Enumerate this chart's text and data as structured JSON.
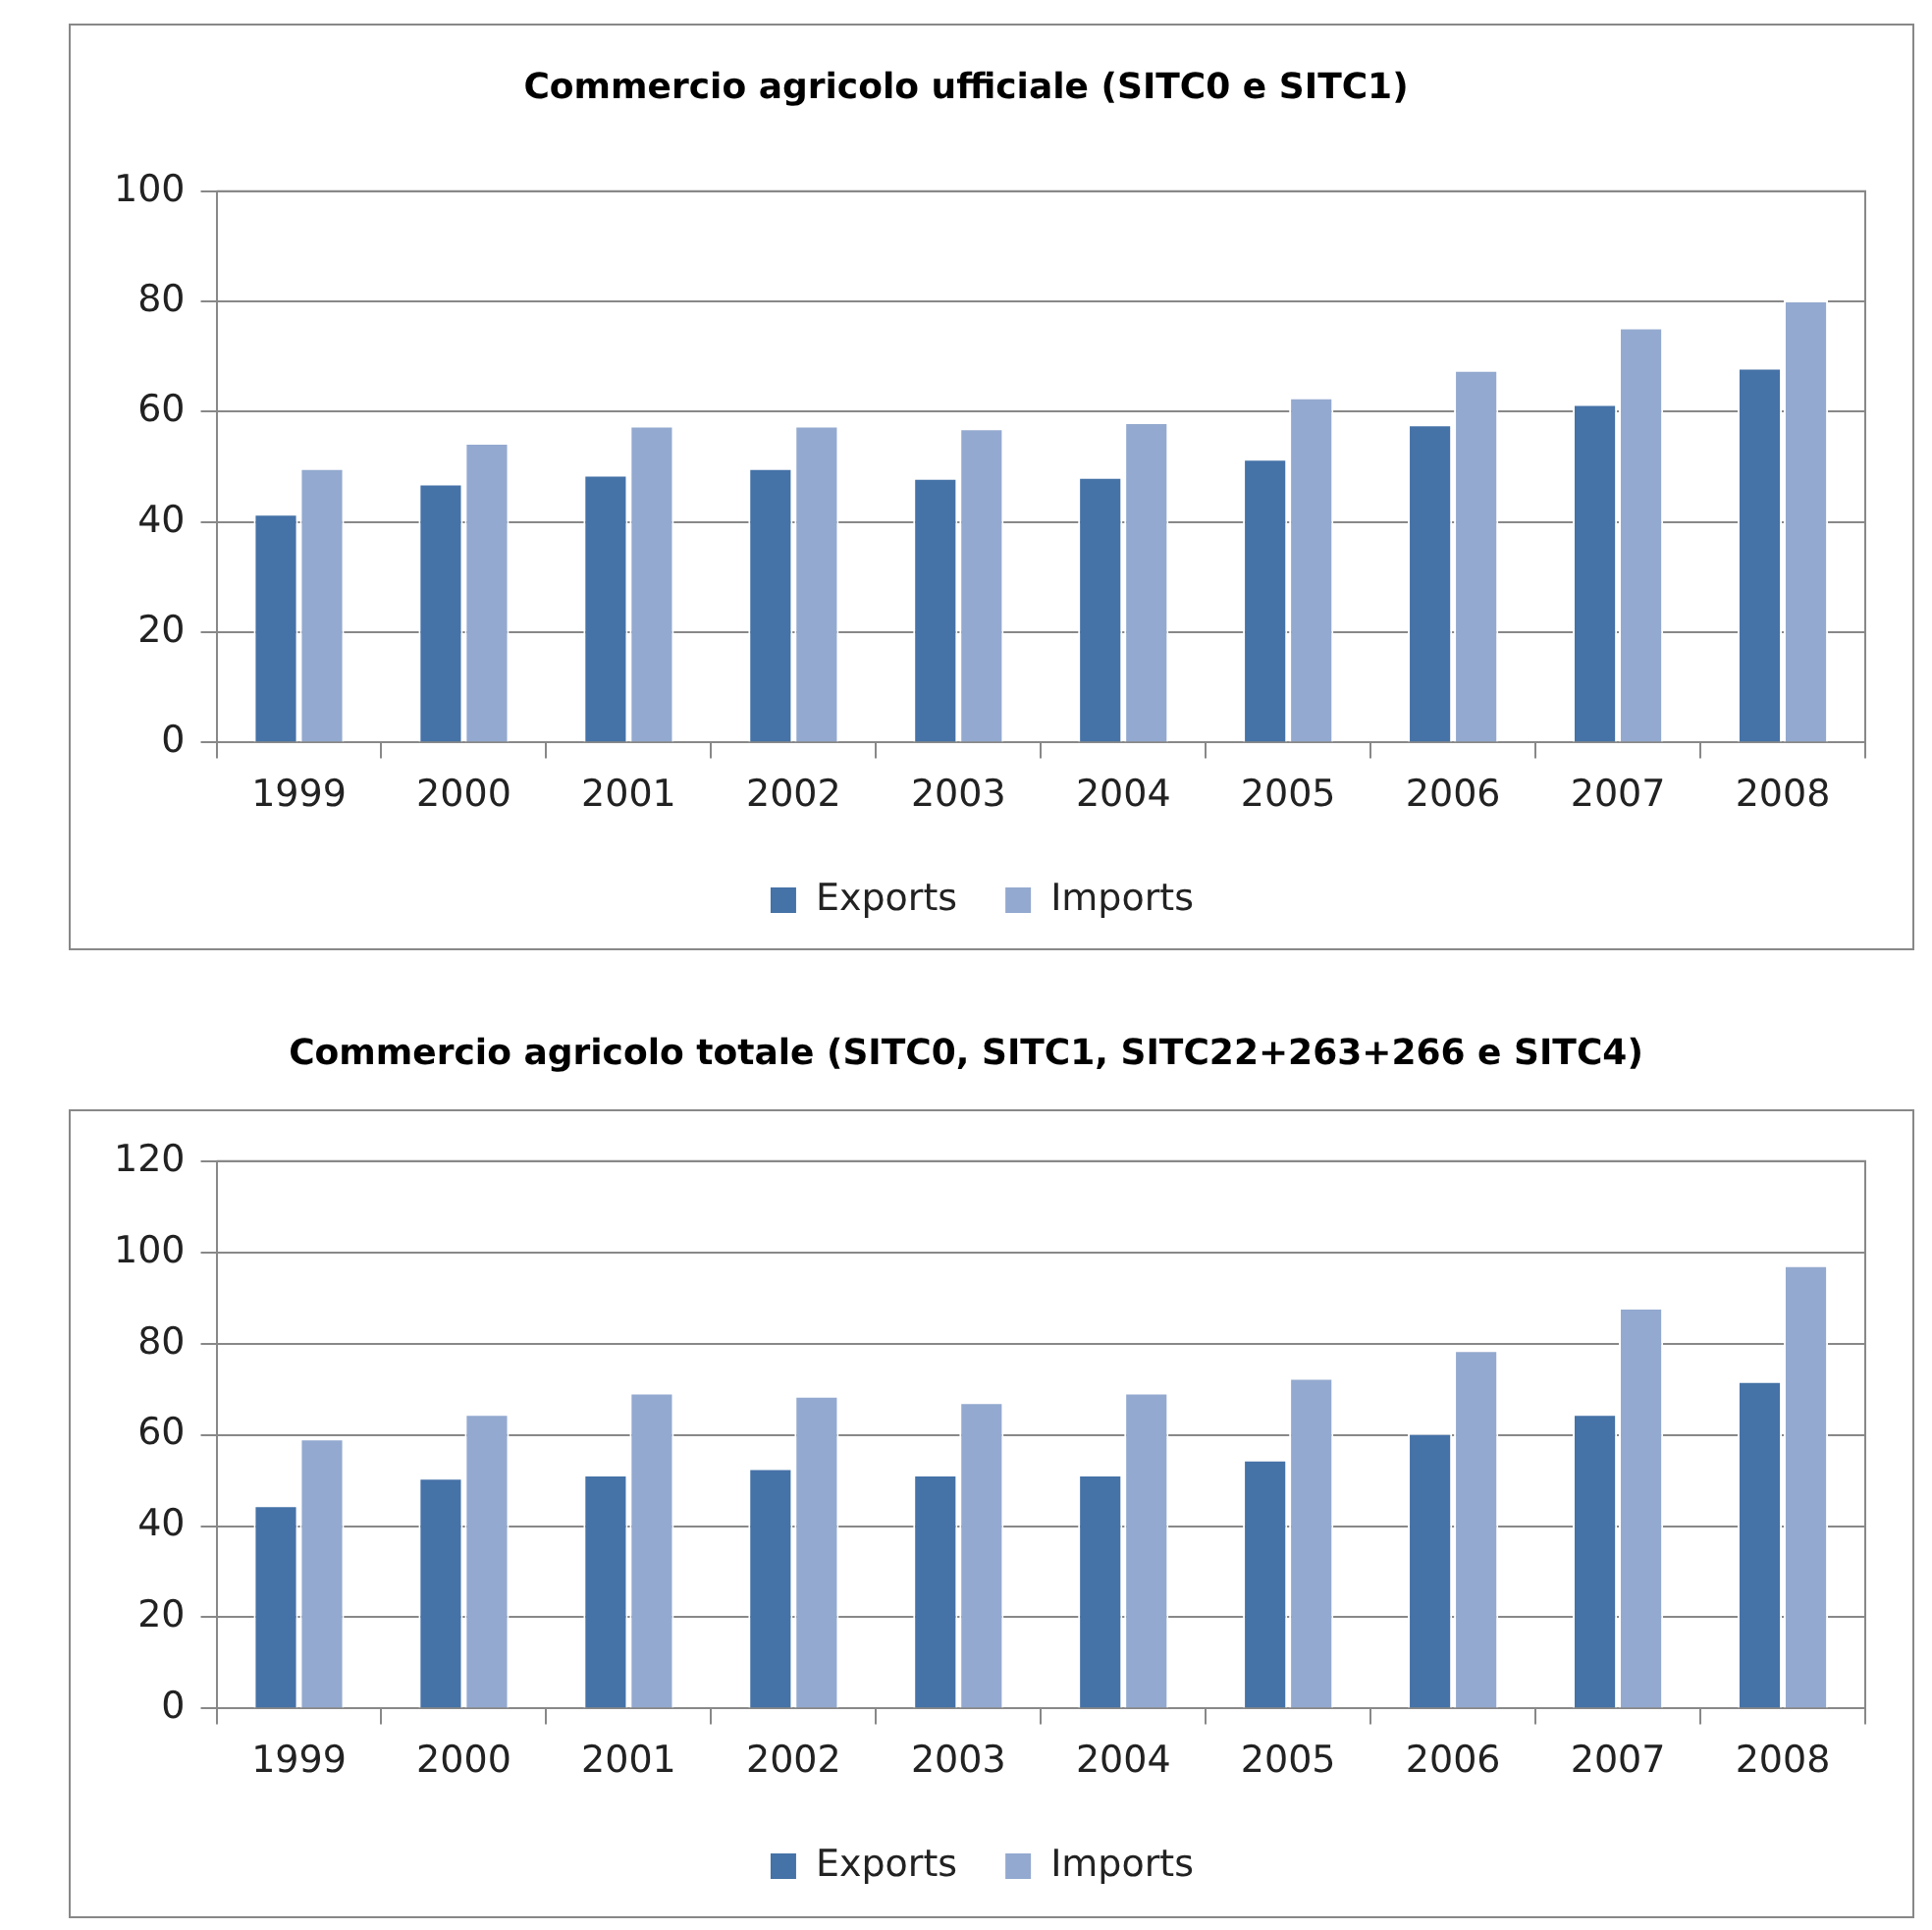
{
  "chart_data": [
    {
      "type": "bar",
      "title": "Commercio agricolo ufficiale (SITC0 e SITC1)",
      "categories": [
        "1999",
        "2000",
        "2001",
        "2002",
        "2003",
        "2004",
        "2005",
        "2006",
        "2007",
        "2008"
      ],
      "series": [
        {
          "name": "Exports",
          "color": "#4572a7",
          "values": [
            41.5,
            47,
            48.6,
            49.8,
            48,
            48.2,
            51.5,
            57.7,
            61.4,
            68
          ]
        },
        {
          "name": "Imports",
          "color": "#93a9cf",
          "values": [
            49.8,
            54.4,
            57.5,
            57.5,
            57,
            58.1,
            62.6,
            67.6,
            75.3,
            80.2
          ]
        }
      ],
      "ylim": [
        0,
        100
      ],
      "yticks": [
        0,
        20,
        40,
        60,
        80,
        100
      ],
      "grid": "y",
      "legend": "bottom"
    },
    {
      "type": "bar",
      "title": "Commercio agricolo totale (SITC0, SITC1, SITC22+263+266 e SITC4)",
      "categories": [
        "1999",
        "2000",
        "2001",
        "2002",
        "2003",
        "2004",
        "2005",
        "2006",
        "2007",
        "2008"
      ],
      "series": [
        {
          "name": "Exports",
          "color": "#4572a7",
          "values": [
            44.6,
            50.6,
            51.3,
            52.7,
            51.3,
            51.3,
            54.6,
            60.4,
            64.6,
            71.8
          ]
        },
        {
          "name": "Imports",
          "color": "#93a9cf",
          "values": [
            59.2,
            64.6,
            69.3,
            68.6,
            67.2,
            69.3,
            72.5,
            78.6,
            87.9,
            97.2
          ]
        }
      ],
      "ylim": [
        0,
        120
      ],
      "yticks": [
        0,
        20,
        40,
        60,
        80,
        100,
        120
      ],
      "grid": "y",
      "legend": "bottom"
    }
  ]
}
